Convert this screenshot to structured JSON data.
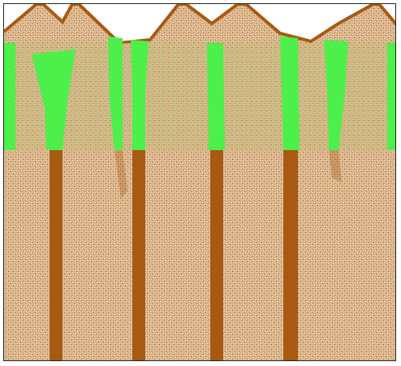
{
  "scene": {
    "colors": {
      "background": "#ffffff",
      "border": "#222222",
      "soil": "#a85a12",
      "soil_light": "#d9b48a",
      "soil_highlight": "#f3e6d6",
      "green": "#4df04a"
    }
  }
}
